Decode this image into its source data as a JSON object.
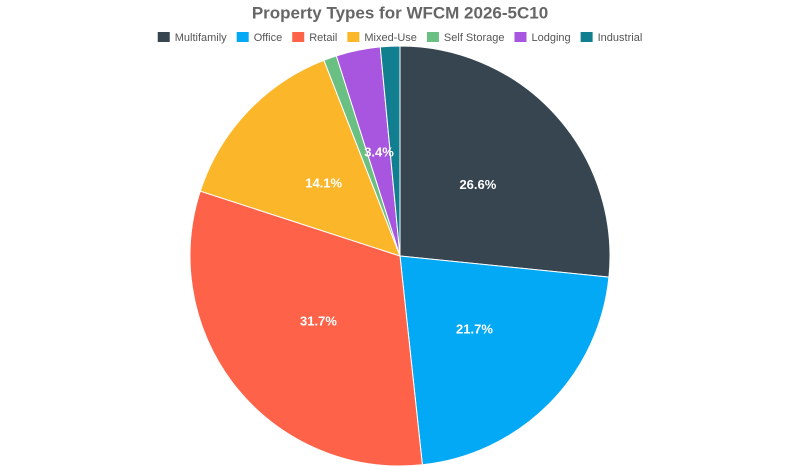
{
  "chart_data": {
    "type": "pie",
    "title": "Property Types for WFCM 2026-5C10",
    "categories": [
      "Multifamily",
      "Office",
      "Retail",
      "Mixed-Use",
      "Self Storage",
      "Lodging",
      "Industrial"
    ],
    "values": [
      26.6,
      21.7,
      31.7,
      14.1,
      1.0,
      3.4,
      1.5
    ],
    "value_labels": [
      "26.6%",
      "21.7%",
      "31.7%",
      "14.1%",
      null,
      "3.4%",
      null
    ],
    "colors": [
      "#36454f",
      "#03a9f4",
      "#fe634a",
      "#fbb62a",
      "#6abf83",
      "#a855e0",
      "#117f8f"
    ],
    "legend": "top"
  }
}
